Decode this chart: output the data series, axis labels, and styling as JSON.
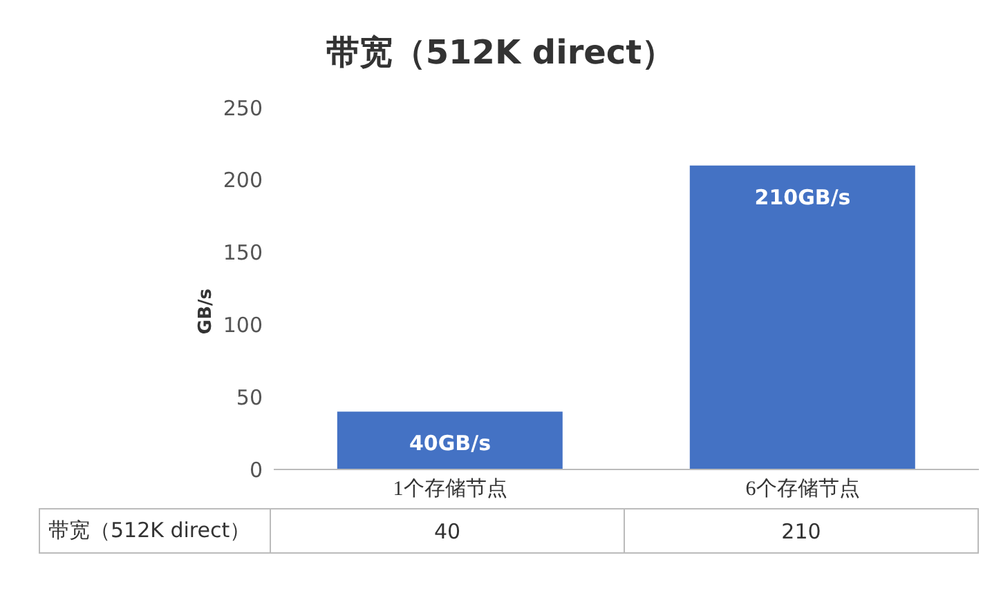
{
  "chart_data": {
    "type": "bar",
    "title": "带宽（512K direct）",
    "ylabel": "GB/s",
    "categories": [
      "1个存储节点",
      "6个存储节点"
    ],
    "series": [
      {
        "name": "带宽（512K direct）",
        "color": "#4472c4",
        "values": [
          40,
          210
        ]
      }
    ],
    "annotations": [
      {
        "text": "40GB/s",
        "x": "1个存储节点",
        "y": 40
      },
      {
        "text": "210GB/s",
        "x": "6个存储节点",
        "y": 210
      }
    ],
    "ylim": [
      0,
      250
    ],
    "yticks": [
      0,
      50,
      100,
      150,
      200,
      250
    ],
    "legend": false,
    "data_labels": true
  }
}
